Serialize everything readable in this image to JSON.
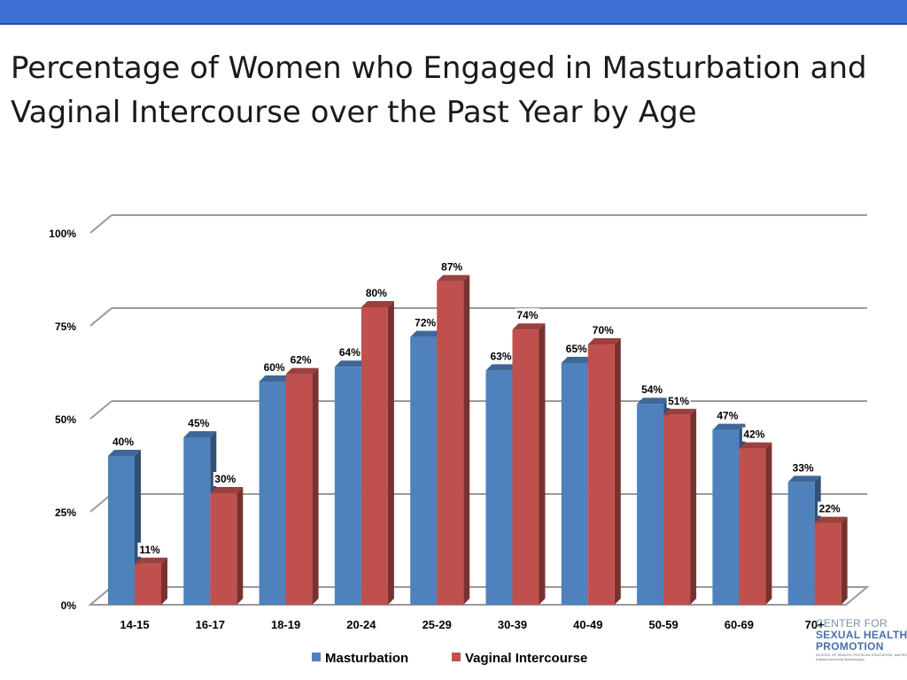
{
  "title": "Percentage of Women who Engaged in Masturbation and Vaginal Intercourse over the Past Year by Age",
  "logo": {
    "line1": "CENTER FOR",
    "line2": "SEXUAL HEALTH",
    "line3": "PROMOTION",
    "line4": "SCHOOL OF HEALTH, PHYSICAL EDUCATION, and RECREATION",
    "line5": "Indiana University Bloomington"
  },
  "chart_data": {
    "type": "bar",
    "categories": [
      "14-15",
      "16-17",
      "18-19",
      "20-24",
      "25-29",
      "30-39",
      "40-49",
      "50-59",
      "60-69",
      "70+"
    ],
    "series": [
      {
        "name": "Masturbation",
        "values": [
          40,
          45,
          60,
          64,
          72,
          63,
          65,
          54,
          47,
          33
        ],
        "labels": [
          "40%",
          "45%",
          "60%",
          "64%",
          "72%",
          "63%",
          "65%",
          "54%",
          "47%",
          "33%"
        ],
        "color": "#4f81bd"
      },
      {
        "name": "Vaginal Intercourse",
        "values": [
          11,
          30,
          62,
          80,
          87,
          74,
          70,
          51,
          42,
          22
        ],
        "labels": [
          "11%",
          "30%",
          "62%",
          "80%",
          "87%",
          "74%",
          "70%",
          "51%",
          "42%",
          "22%"
        ],
        "color": "#c0504d"
      }
    ],
    "yticks": [
      {
        "value": 0,
        "label": "0%"
      },
      {
        "value": 25,
        "label": "25%"
      },
      {
        "value": 50,
        "label": "50%"
      },
      {
        "value": 75,
        "label": "75%"
      },
      {
        "value": 100,
        "label": "100%"
      }
    ],
    "ylim": [
      0,
      100
    ],
    "grid": true,
    "legend_position": "bottom"
  }
}
